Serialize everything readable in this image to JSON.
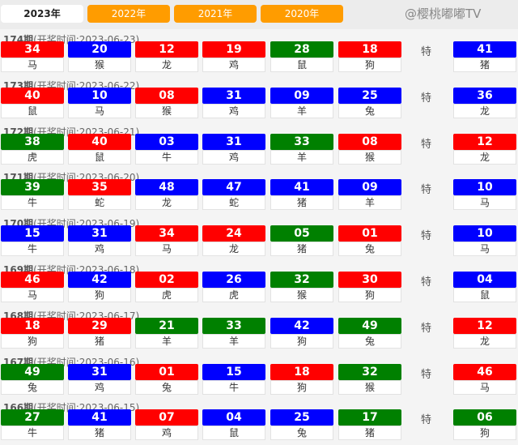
{
  "tabs": [
    {
      "label": "2023年",
      "active": true
    },
    {
      "label": "2022年"
    },
    {
      "label": "2021年"
    },
    {
      "label": "2020年"
    }
  ],
  "colors": {
    "red": "#ff0000",
    "blue": "#0000ff",
    "green": "#008000",
    "tab": "#ff9c00"
  },
  "special_label": "特",
  "watermark": "@樱桃嘟嘟TV",
  "draws": [
    {
      "period": "174期",
      "time": "(开奖时间:2023-06-23)",
      "balls": [
        [
          "34",
          "red",
          "马"
        ],
        [
          "20",
          "blue",
          "猴"
        ],
        [
          "12",
          "red",
          "龙"
        ],
        [
          "19",
          "red",
          "鸡"
        ],
        [
          "28",
          "green",
          "鼠"
        ],
        [
          "18",
          "red",
          "狗"
        ]
      ],
      "special": [
        "41",
        "blue",
        "猪"
      ]
    },
    {
      "period": "173期",
      "time": "(开奖时间:2023-06-22)",
      "balls": [
        [
          "40",
          "red",
          "鼠"
        ],
        [
          "10",
          "blue",
          "马"
        ],
        [
          "08",
          "red",
          "猴"
        ],
        [
          "31",
          "blue",
          "鸡"
        ],
        [
          "09",
          "blue",
          "羊"
        ],
        [
          "25",
          "blue",
          "兔"
        ]
      ],
      "special": [
        "36",
        "blue",
        "龙"
      ]
    },
    {
      "period": "172期",
      "time": "(开奖时间:2023-06-21)",
      "balls": [
        [
          "38",
          "green",
          "虎"
        ],
        [
          "40",
          "red",
          "鼠"
        ],
        [
          "03",
          "blue",
          "牛"
        ],
        [
          "31",
          "blue",
          "鸡"
        ],
        [
          "33",
          "green",
          "羊"
        ],
        [
          "08",
          "red",
          "猴"
        ]
      ],
      "special": [
        "12",
        "red",
        "龙"
      ]
    },
    {
      "period": "171期",
      "time": "(开奖时间:2023-06-20)",
      "balls": [
        [
          "39",
          "green",
          "牛"
        ],
        [
          "35",
          "red",
          "蛇"
        ],
        [
          "48",
          "blue",
          "龙"
        ],
        [
          "47",
          "blue",
          "蛇"
        ],
        [
          "41",
          "blue",
          "猪"
        ],
        [
          "09",
          "blue",
          "羊"
        ]
      ],
      "special": [
        "10",
        "blue",
        "马"
      ]
    },
    {
      "period": "170期",
      "time": "(开奖时间:2023-06-19)",
      "balls": [
        [
          "15",
          "blue",
          "牛"
        ],
        [
          "31",
          "blue",
          "鸡"
        ],
        [
          "34",
          "red",
          "马"
        ],
        [
          "24",
          "red",
          "龙"
        ],
        [
          "05",
          "green",
          "猪"
        ],
        [
          "01",
          "red",
          "兔"
        ]
      ],
      "special": [
        "10",
        "blue",
        "马"
      ]
    },
    {
      "period": "169期",
      "time": "(开奖时间:2023-06-18)",
      "balls": [
        [
          "46",
          "red",
          "马"
        ],
        [
          "42",
          "blue",
          "狗"
        ],
        [
          "02",
          "red",
          "虎"
        ],
        [
          "26",
          "blue",
          "虎"
        ],
        [
          "32",
          "green",
          "猴"
        ],
        [
          "30",
          "red",
          "狗"
        ]
      ],
      "special": [
        "04",
        "blue",
        "鼠"
      ]
    },
    {
      "period": "168期",
      "time": "(开奖时间:2023-06-17)",
      "balls": [
        [
          "18",
          "red",
          "狗"
        ],
        [
          "29",
          "red",
          "猪"
        ],
        [
          "21",
          "green",
          "羊"
        ],
        [
          "33",
          "green",
          "羊"
        ],
        [
          "42",
          "blue",
          "狗"
        ],
        [
          "49",
          "green",
          "兔"
        ]
      ],
      "special": [
        "12",
        "red",
        "龙"
      ]
    },
    {
      "period": "167期",
      "time": "(开奖时间:2023-06-16)",
      "balls": [
        [
          "49",
          "green",
          "兔"
        ],
        [
          "31",
          "blue",
          "鸡"
        ],
        [
          "01",
          "red",
          "兔"
        ],
        [
          "15",
          "blue",
          "牛"
        ],
        [
          "18",
          "red",
          "狗"
        ],
        [
          "32",
          "green",
          "猴"
        ]
      ],
      "special": [
        "46",
        "red",
        "马"
      ]
    },
    {
      "period": "166期",
      "time": "(开奖时间:2023-06-15)",
      "balls": [
        [
          "27",
          "green",
          "牛"
        ],
        [
          "41",
          "blue",
          "猪"
        ],
        [
          "07",
          "red",
          "鸡"
        ],
        [
          "04",
          "blue",
          "鼠"
        ],
        [
          "25",
          "blue",
          "兔"
        ],
        [
          "17",
          "green",
          "猪"
        ]
      ],
      "special": [
        "06",
        "green",
        "狗"
      ]
    }
  ]
}
